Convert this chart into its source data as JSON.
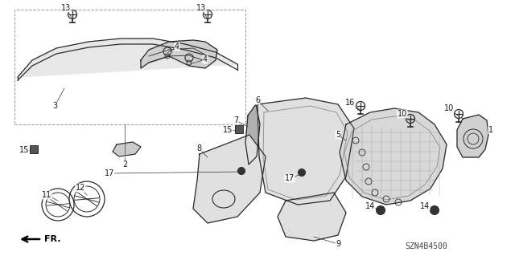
{
  "bg_color": "#ffffff",
  "line_color": "#2a2a2a",
  "text_color": "#1a1a1a",
  "diagram_code": "SZN4B4500",
  "fig_w": 6.4,
  "fig_h": 3.19,
  "dpi": 100
}
